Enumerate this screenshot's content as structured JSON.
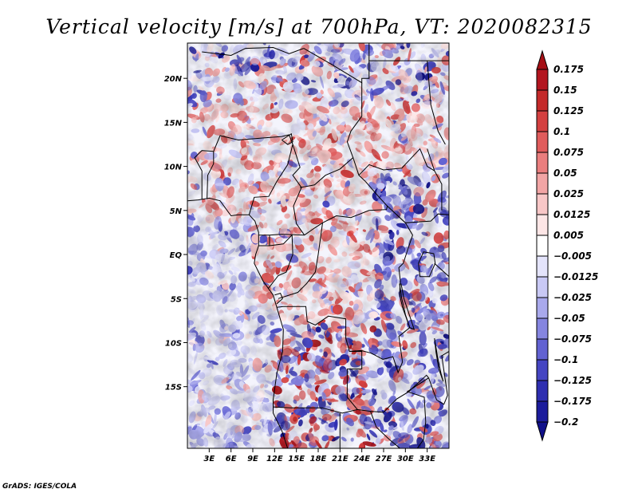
{
  "chart_data": {
    "type": "heatmap",
    "title": "Vertical velocity [m/s] at 700hPa, VT: 2020082315",
    "variable": "Vertical velocity",
    "units": "m/s",
    "level": "700hPa",
    "valid_time": "2020082315",
    "lon_range": [
      0,
      36
    ],
    "lat_range": [
      -22,
      24
    ],
    "x_ticks": [
      {
        "value": 3,
        "label": "3E"
      },
      {
        "value": 6,
        "label": "6E"
      },
      {
        "value": 9,
        "label": "9E"
      },
      {
        "value": 12,
        "label": "12E"
      },
      {
        "value": 15,
        "label": "15E"
      },
      {
        "value": 18,
        "label": "18E"
      },
      {
        "value": 21,
        "label": "21E"
      },
      {
        "value": 24,
        "label": "24E"
      },
      {
        "value": 27,
        "label": "27E"
      },
      {
        "value": 30,
        "label": "30E"
      },
      {
        "value": 33,
        "label": "33E"
      }
    ],
    "y_ticks": [
      {
        "value": 20,
        "label": "20N"
      },
      {
        "value": 15,
        "label": "15N"
      },
      {
        "value": 10,
        "label": "10N"
      },
      {
        "value": 5,
        "label": "5N"
      },
      {
        "value": 0,
        "label": "EQ"
      },
      {
        "value": -5,
        "label": "5S"
      },
      {
        "value": -10,
        "label": "10S"
      },
      {
        "value": -15,
        "label": "15S"
      }
    ],
    "colorbar": {
      "levels": [
        "0.175",
        "0.15",
        "0.125",
        "0.1",
        "0.075",
        "0.05",
        "0.025",
        "0.0125",
        "0.005",
        "−0.005",
        "−0.0125",
        "−0.025",
        "−0.05",
        "−0.075",
        "−0.1",
        "−0.125",
        "−0.175",
        "−0.2"
      ],
      "colors": [
        "#a50f15",
        "#b3151f",
        "#c42a2a",
        "#d44040",
        "#e05c5c",
        "#ea7e7e",
        "#f2a5a5",
        "#f8c7c7",
        "#fde6e6",
        "#ffffff",
        "#e4e4fb",
        "#c9c9f5",
        "#a9a9ec",
        "#8585e0",
        "#6262d2",
        "#4545c2",
        "#2e2eb0",
        "#1c1c9c",
        "#10108a"
      ]
    }
  },
  "credit": "GrADS: IGES/COLA"
}
